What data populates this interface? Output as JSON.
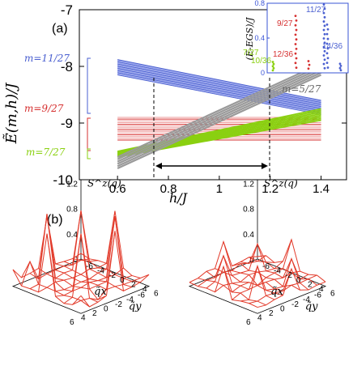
{
  "figure": {
    "panel_a_label": "(a)",
    "panel_b_label": "(b)"
  },
  "colors": {
    "blue": "#4a5fd0",
    "blue_light": "#9aa6ec",
    "red": "#d63030",
    "red_light": "#ee9a9a",
    "green": "#8ad010",
    "gray": "#9a9a9a",
    "surface": "#e23a2a"
  },
  "chart_data": [
    {
      "type": "line",
      "panel": "a",
      "ylabel": "Ẽ(m,h)/J",
      "xlabel": "h/J",
      "xlim": [
        0.45,
        1.5
      ],
      "ylim": [
        -10,
        -7
      ],
      "xticks": [
        "0.6",
        "0.8",
        "1",
        "1.2",
        "1.4"
      ],
      "yticks": [
        "-10",
        "-9",
        "-8",
        "-7"
      ],
      "series": [
        {
          "name": "m=11/27",
          "color": "blue",
          "x": [
            0.6,
            1.4
          ],
          "y_range_start": [
            -8.15,
            -7.88
          ],
          "y_range_end": [
            -8.85,
            -8.6
          ],
          "lines": 22
        },
        {
          "name": "m=9/27",
          "color": "red",
          "x": [
            0.6,
            1.4
          ],
          "y_range_start": [
            -9.3,
            -8.9
          ],
          "y_range_end": [
            -9.3,
            -8.9
          ],
          "lines": 14
        },
        {
          "name": "m=7/27",
          "color": "green",
          "x": [
            0.6,
            1.4
          ],
          "y_range_start": [
            -9.6,
            -9.5
          ],
          "y_range_end": [
            -8.95,
            -8.75
          ],
          "lines": 8
        },
        {
          "name": "m=5/27",
          "color": "gray",
          "x": [
            0.6,
            1.4
          ],
          "y_range_start": [
            -9.8,
            -9.6
          ],
          "y_range_end": [
            -8.15,
            -7.95
          ],
          "lines": 6
        }
      ],
      "dashed_markers_x": [
        0.88,
        1.35
      ],
      "arrow_range": [
        0.88,
        1.35
      ]
    },
    {
      "type": "scatter",
      "panel": "inset",
      "ylabel": "(E-EGS)/J",
      "ylim": [
        0,
        0.8
      ],
      "yticks": [
        "0",
        "0.4",
        "0.8"
      ],
      "annotations": [
        {
          "label": "11/27",
          "color": "blue"
        },
        {
          "label": "9/27",
          "color": "red"
        },
        {
          "label": "7/27",
          "color": "green"
        },
        {
          "label": "10/36",
          "color": "green"
        },
        {
          "label": "12/36",
          "color": "red"
        },
        {
          "label": "14/36",
          "color": "blue"
        }
      ]
    },
    {
      "type": "heatmap",
      "panel": "b-left",
      "zlabel": "S^z(q)",
      "zticks": [
        "0",
        "0.4",
        "0.8",
        "1.2"
      ],
      "xlabel": "q̃x",
      "ylabel": "q̃y",
      "axis_ticks": [
        "-6",
        "-4",
        "-2",
        "0",
        "2",
        "4",
        "6"
      ],
      "peak_max": 1.2
    },
    {
      "type": "heatmap",
      "panel": "b-right",
      "zlabel": "S^z(q)",
      "zticks": [
        "0",
        "0.4",
        "0.8",
        "1.2"
      ],
      "xlabel": "q̃x",
      "ylabel": "q̃y",
      "axis_ticks": [
        "-6",
        "-4",
        "-2",
        "0",
        "2",
        "4",
        "6"
      ],
      "peak_max": 0.55
    }
  ]
}
